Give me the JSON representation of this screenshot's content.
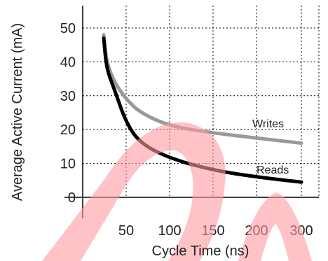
{
  "chart_data": {
    "type": "line",
    "xlabel": "Cycle Time (ns)",
    "ylabel": "Average Active Current (mA)",
    "xticks": [
      {
        "value": 50,
        "label": "50"
      },
      {
        "value": 100,
        "label": "100"
      },
      {
        "value": 150,
        "label": "150"
      },
      {
        "value": 200,
        "label": "200"
      },
      {
        "value": 300,
        "label": "300"
      }
    ],
    "yticks": [
      {
        "value": 0,
        "label": "0"
      },
      {
        "value": 10,
        "label": "10"
      },
      {
        "value": 20,
        "label": "20"
      },
      {
        "value": 30,
        "label": "30"
      },
      {
        "value": 40,
        "label": "40"
      },
      {
        "value": 50,
        "label": "50"
      }
    ],
    "ylim": [
      0,
      50
    ],
    "grid": true,
    "series": [
      {
        "name": "Writes",
        "color": "#999999",
        "x": [
          20,
          25,
          35,
          50,
          70,
          100,
          150,
          200,
          300
        ],
        "y": [
          48,
          40,
          34,
          29,
          25,
          21,
          19,
          17.5,
          16
        ]
      },
      {
        "name": "Reads",
        "color": "#000000",
        "x": [
          20,
          25,
          35,
          50,
          70,
          100,
          150,
          200,
          300
        ],
        "y": [
          47,
          38,
          32,
          22,
          16,
          11.5,
          8,
          6,
          4.5
        ]
      }
    ]
  },
  "watermark": {
    "color": "#ff9aa2",
    "opacity": 0.6
  }
}
